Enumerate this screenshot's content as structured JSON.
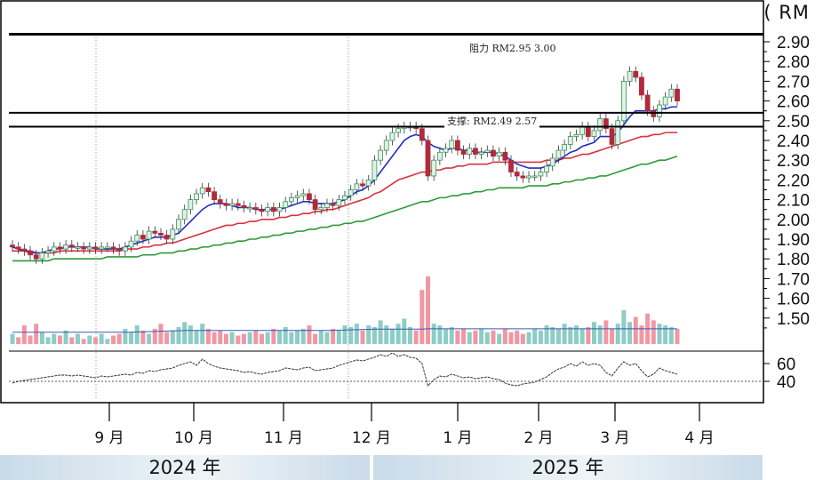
{
  "unit_label": "价 格 ( RM )",
  "annotations": {
    "resistance": "阻力 RM2.95 3.00",
    "support": "支撑: RM2.49 2.57"
  },
  "years": [
    "2024 年",
    "2025 年"
  ],
  "chart_data": [
    {
      "type": "candlestick",
      "ylim": [
        1.4,
        2.95
      ],
      "y_ticks": [
        "2.90",
        "2.80",
        "2.70",
        "2.60",
        "2.50",
        "2.40",
        "2.30",
        "2.20",
        "2.10",
        "2.00",
        "1.90",
        "1.80",
        "1.70",
        "1.60",
        "1.50"
      ],
      "x_ticks": [
        "9 月",
        "10 月",
        "11 月",
        "12 月",
        "1 月",
        "2 月",
        "3 月",
        "4 月"
      ],
      "horizontal_lines": [
        2.54,
        2.47
      ],
      "close": [
        1.86,
        1.85,
        1.84,
        1.82,
        1.8,
        1.83,
        1.84,
        1.86,
        1.85,
        1.87,
        1.86,
        1.86,
        1.85,
        1.86,
        1.85,
        1.86,
        1.86,
        1.85,
        1.84,
        1.86,
        1.89,
        1.92,
        1.9,
        1.94,
        1.93,
        1.92,
        1.9,
        1.95,
        2.0,
        2.05,
        2.1,
        2.13,
        2.16,
        2.14,
        2.1,
        2.08,
        2.07,
        2.08,
        2.07,
        2.06,
        2.06,
        2.05,
        2.04,
        2.06,
        2.04,
        2.06,
        2.09,
        2.11,
        2.12,
        2.13,
        2.1,
        2.05,
        2.06,
        2.08,
        2.07,
        2.1,
        2.12,
        2.15,
        2.18,
        2.17,
        2.2,
        2.3,
        2.35,
        2.4,
        2.44,
        2.46,
        2.47,
        2.47,
        2.46,
        2.4,
        2.22,
        2.3,
        2.34,
        2.36,
        2.4,
        2.35,
        2.33,
        2.36,
        2.33,
        2.34,
        2.35,
        2.32,
        2.34,
        2.3,
        2.24,
        2.22,
        2.21,
        2.22,
        2.22,
        2.24,
        2.27,
        2.31,
        2.35,
        2.38,
        2.42,
        2.43,
        2.47,
        2.42,
        2.45,
        2.51,
        2.46,
        2.38,
        2.5,
        2.7,
        2.75,
        2.72,
        2.63,
        2.55,
        2.52,
        2.58,
        2.62,
        2.66,
        2.6
      ],
      "ma_short": [
        1.86,
        1.85,
        1.84,
        1.84,
        1.83,
        1.83,
        1.84,
        1.85,
        1.85,
        1.86,
        1.86,
        1.86,
        1.86,
        1.86,
        1.85,
        1.85,
        1.85,
        1.85,
        1.85,
        1.86,
        1.87,
        1.88,
        1.89,
        1.9,
        1.91,
        1.91,
        1.91,
        1.92,
        1.93,
        1.96,
        1.99,
        2.02,
        2.05,
        2.07,
        2.08,
        2.08,
        2.08,
        2.07,
        2.06,
        2.06,
        2.06,
        2.05,
        2.05,
        2.05,
        2.05,
        2.05,
        2.06,
        2.07,
        2.08,
        2.09,
        2.09,
        2.08,
        2.08,
        2.08,
        2.08,
        2.09,
        2.1,
        2.12,
        2.14,
        2.15,
        2.17,
        2.2,
        2.24,
        2.28,
        2.32,
        2.36,
        2.4,
        2.42,
        2.43,
        2.42,
        2.39,
        2.37,
        2.36,
        2.35,
        2.36,
        2.36,
        2.35,
        2.35,
        2.34,
        2.34,
        2.34,
        2.34,
        2.33,
        2.32,
        2.3,
        2.28,
        2.27,
        2.26,
        2.26,
        2.26,
        2.27,
        2.28,
        2.3,
        2.32,
        2.34,
        2.35,
        2.37,
        2.38,
        2.39,
        2.42,
        2.42,
        2.42,
        2.44,
        2.48,
        2.52,
        2.55,
        2.55,
        2.55,
        2.55,
        2.56,
        2.56,
        2.57,
        2.57
      ],
      "ma_mid": [
        1.84,
        1.84,
        1.84,
        1.83,
        1.83,
        1.83,
        1.83,
        1.83,
        1.84,
        1.84,
        1.84,
        1.84,
        1.84,
        1.84,
        1.84,
        1.84,
        1.84,
        1.84,
        1.84,
        1.85,
        1.85,
        1.85,
        1.86,
        1.86,
        1.87,
        1.87,
        1.88,
        1.88,
        1.89,
        1.9,
        1.91,
        1.92,
        1.93,
        1.94,
        1.95,
        1.96,
        1.97,
        1.97,
        1.98,
        1.98,
        1.99,
        1.99,
        2.0,
        2.0,
        2.0,
        2.01,
        2.01,
        2.02,
        2.02,
        2.03,
        2.03,
        2.04,
        2.04,
        2.05,
        2.05,
        2.06,
        2.07,
        2.08,
        2.09,
        2.1,
        2.11,
        2.13,
        2.14,
        2.16,
        2.18,
        2.2,
        2.21,
        2.22,
        2.23,
        2.24,
        2.24,
        2.25,
        2.25,
        2.26,
        2.26,
        2.27,
        2.27,
        2.28,
        2.28,
        2.28,
        2.28,
        2.29,
        2.29,
        2.29,
        2.29,
        2.29,
        2.29,
        2.29,
        2.29,
        2.29,
        2.3,
        2.3,
        2.3,
        2.31,
        2.31,
        2.32,
        2.33,
        2.33,
        2.34,
        2.35,
        2.36,
        2.37,
        2.38,
        2.39,
        2.4,
        2.41,
        2.42,
        2.42,
        2.43,
        2.43,
        2.44,
        2.44,
        2.44
      ],
      "ma_long": [
        1.79,
        1.79,
        1.79,
        1.79,
        1.79,
        1.79,
        1.79,
        1.8,
        1.8,
        1.8,
        1.8,
        1.8,
        1.8,
        1.8,
        1.8,
        1.8,
        1.81,
        1.81,
        1.81,
        1.81,
        1.81,
        1.81,
        1.82,
        1.82,
        1.82,
        1.83,
        1.83,
        1.83,
        1.84,
        1.84,
        1.85,
        1.85,
        1.86,
        1.86,
        1.87,
        1.87,
        1.88,
        1.88,
        1.89,
        1.89,
        1.9,
        1.9,
        1.91,
        1.91,
        1.92,
        1.92,
        1.93,
        1.93,
        1.94,
        1.94,
        1.95,
        1.95,
        1.96,
        1.96,
        1.97,
        1.97,
        1.98,
        1.98,
        1.99,
        1.99,
        2.0,
        2.01,
        2.02,
        2.03,
        2.04,
        2.05,
        2.06,
        2.07,
        2.08,
        2.09,
        2.09,
        2.1,
        2.11,
        2.11,
        2.12,
        2.12,
        2.13,
        2.13,
        2.14,
        2.14,
        2.15,
        2.15,
        2.16,
        2.16,
        2.16,
        2.16,
        2.16,
        2.17,
        2.17,
        2.17,
        2.17,
        2.18,
        2.18,
        2.19,
        2.19,
        2.2,
        2.2,
        2.21,
        2.21,
        2.22,
        2.22,
        2.23,
        2.24,
        2.25,
        2.26,
        2.27,
        2.28,
        2.28,
        2.29,
        2.3,
        2.3,
        2.31,
        2.32
      ]
    },
    {
      "type": "bar",
      "values": [
        0.3,
        0.2,
        0.55,
        0.25,
        0.6,
        0.35,
        0.2,
        0.3,
        0.25,
        0.4,
        0.2,
        0.3,
        0.15,
        0.25,
        0.2,
        0.3,
        0.15,
        0.25,
        0.3,
        0.45,
        0.35,
        0.55,
        0.4,
        0.3,
        0.45,
        0.6,
        0.35,
        0.4,
        0.5,
        0.65,
        0.55,
        0.4,
        0.6,
        0.45,
        0.35,
        0.4,
        0.3,
        0.35,
        0.25,
        0.3,
        0.35,
        0.4,
        0.3,
        0.35,
        0.45,
        0.4,
        0.5,
        0.35,
        0.4,
        0.45,
        0.55,
        0.3,
        0.4,
        0.35,
        0.45,
        0.4,
        0.55,
        0.5,
        0.6,
        0.4,
        0.55,
        0.5,
        0.7,
        0.55,
        0.45,
        0.6,
        0.75,
        0.5,
        0.4,
        1.6,
        2.0,
        0.6,
        0.55,
        0.45,
        0.5,
        0.4,
        0.45,
        0.35,
        0.4,
        0.45,
        0.35,
        0.4,
        0.3,
        0.45,
        0.35,
        0.4,
        0.3,
        0.35,
        0.45,
        0.4,
        0.55,
        0.5,
        0.45,
        0.6,
        0.5,
        0.55,
        0.45,
        0.5,
        0.65,
        0.55,
        0.7,
        0.45,
        0.6,
        1.0,
        0.65,
        0.8,
        0.55,
        0.9,
        0.7,
        0.6,
        0.55,
        0.5,
        0.45
      ],
      "volume_ma": [
        0.35,
        0.35,
        0.35,
        0.35,
        0.35,
        0.35,
        0.35,
        0.35,
        0.35,
        0.35,
        0.35,
        0.35,
        0.35,
        0.35,
        0.35,
        0.35,
        0.35,
        0.35,
        0.35,
        0.35,
        0.35,
        0.36,
        0.36,
        0.37,
        0.37,
        0.38,
        0.38,
        0.39,
        0.39,
        0.4,
        0.4,
        0.4,
        0.4,
        0.4,
        0.4,
        0.4,
        0.4,
        0.4,
        0.4,
        0.4,
        0.4,
        0.4,
        0.4,
        0.4,
        0.4,
        0.4,
        0.4,
        0.4,
        0.4,
        0.4,
        0.4,
        0.4,
        0.4,
        0.4,
        0.4,
        0.41,
        0.41,
        0.42,
        0.42,
        0.43,
        0.43,
        0.44,
        0.44,
        0.44,
        0.44,
        0.44,
        0.44,
        0.44,
        0.44,
        0.44,
        0.45,
        0.45,
        0.45,
        0.45,
        0.45,
        0.45,
        0.45,
        0.45,
        0.45,
        0.45,
        0.45,
        0.45,
        0.45,
        0.45,
        0.45,
        0.45,
        0.45,
        0.45,
        0.45,
        0.45,
        0.45,
        0.45,
        0.45,
        0.45,
        0.45,
        0.45,
        0.45,
        0.45,
        0.45,
        0.45,
        0.45,
        0.45,
        0.45,
        0.45,
        0.45,
        0.45,
        0.45,
        0.45,
        0.45,
        0.45,
        0.45,
        0.45,
        0.45
      ]
    },
    {
      "type": "line",
      "ylim": [
        30,
        75
      ],
      "y_ticks": [
        "60",
        "40"
      ],
      "reference_line": 40,
      "values": [
        38,
        40,
        41,
        42,
        43,
        44,
        45,
        46,
        47,
        47,
        46,
        47,
        46,
        45,
        44,
        46,
        45,
        46,
        47,
        48,
        47,
        50,
        49,
        52,
        51,
        53,
        54,
        55,
        58,
        60,
        62,
        58,
        65,
        60,
        57,
        55,
        54,
        53,
        52,
        50,
        51,
        49,
        48,
        50,
        51,
        52,
        55,
        54,
        53,
        55,
        56,
        52,
        53,
        54,
        55,
        58,
        60,
        62,
        64,
        63,
        65,
        67,
        70,
        68,
        72,
        68,
        70,
        67,
        66,
        60,
        35,
        42,
        46,
        45,
        48,
        46,
        44,
        45,
        43,
        44,
        45,
        43,
        42,
        38,
        36,
        35,
        37,
        38,
        39,
        42,
        45,
        50,
        54,
        56,
        60,
        57,
        62,
        58,
        60,
        58,
        50,
        46,
        55,
        62,
        58,
        60,
        52,
        45,
        48,
        55,
        52,
        50,
        48
      ]
    }
  ]
}
